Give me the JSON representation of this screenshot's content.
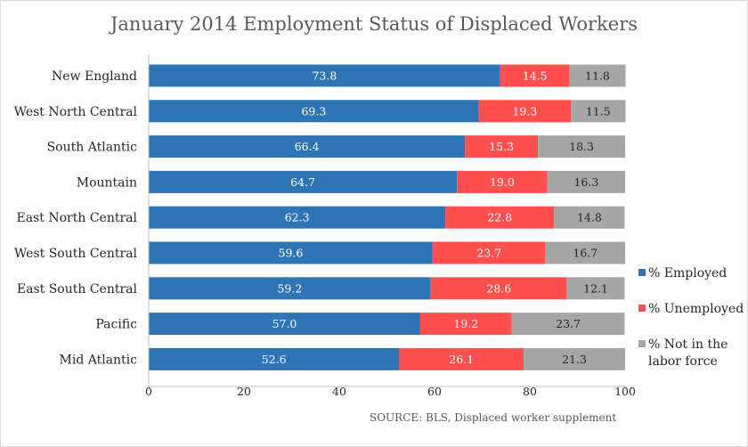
{
  "chart_data": {
    "type": "bar",
    "orientation": "horizontal",
    "stacked": true,
    "title": "January 2014 Employment Status of Displaced Workers",
    "categories": [
      "New England",
      "West North Central",
      "South Atlantic",
      "Mountain",
      "East North Central",
      "West South Central",
      "East South Central",
      "Pacific",
      "Mid Atlantic"
    ],
    "series": [
      {
        "name": "% Employed",
        "color": "#2e75b6",
        "values": [
          73.8,
          69.3,
          66.4,
          64.7,
          62.3,
          59.6,
          59.2,
          57.0,
          52.6
        ]
      },
      {
        "name": "% Unemployed",
        "color": "#ff5050",
        "values": [
          14.5,
          19.3,
          15.3,
          19.0,
          22.8,
          23.7,
          28.6,
          19.2,
          26.1
        ]
      },
      {
        "name": "% Not in the labor force",
        "legend_lines": [
          "% Not in the",
          "labor force"
        ],
        "color": "#a6a6a6",
        "values": [
          11.8,
          11.5,
          18.3,
          16.3,
          14.8,
          16.7,
          12.1,
          23.7,
          21.3
        ]
      }
    ],
    "xlim": [
      0,
      100
    ],
    "xticks": [
      0,
      20,
      40,
      60,
      80,
      100
    ],
    "xlabel": "",
    "ylabel": "",
    "grid": false,
    "legend": "right",
    "source": "SOURCE: BLS, Displaced worker supplement"
  }
}
